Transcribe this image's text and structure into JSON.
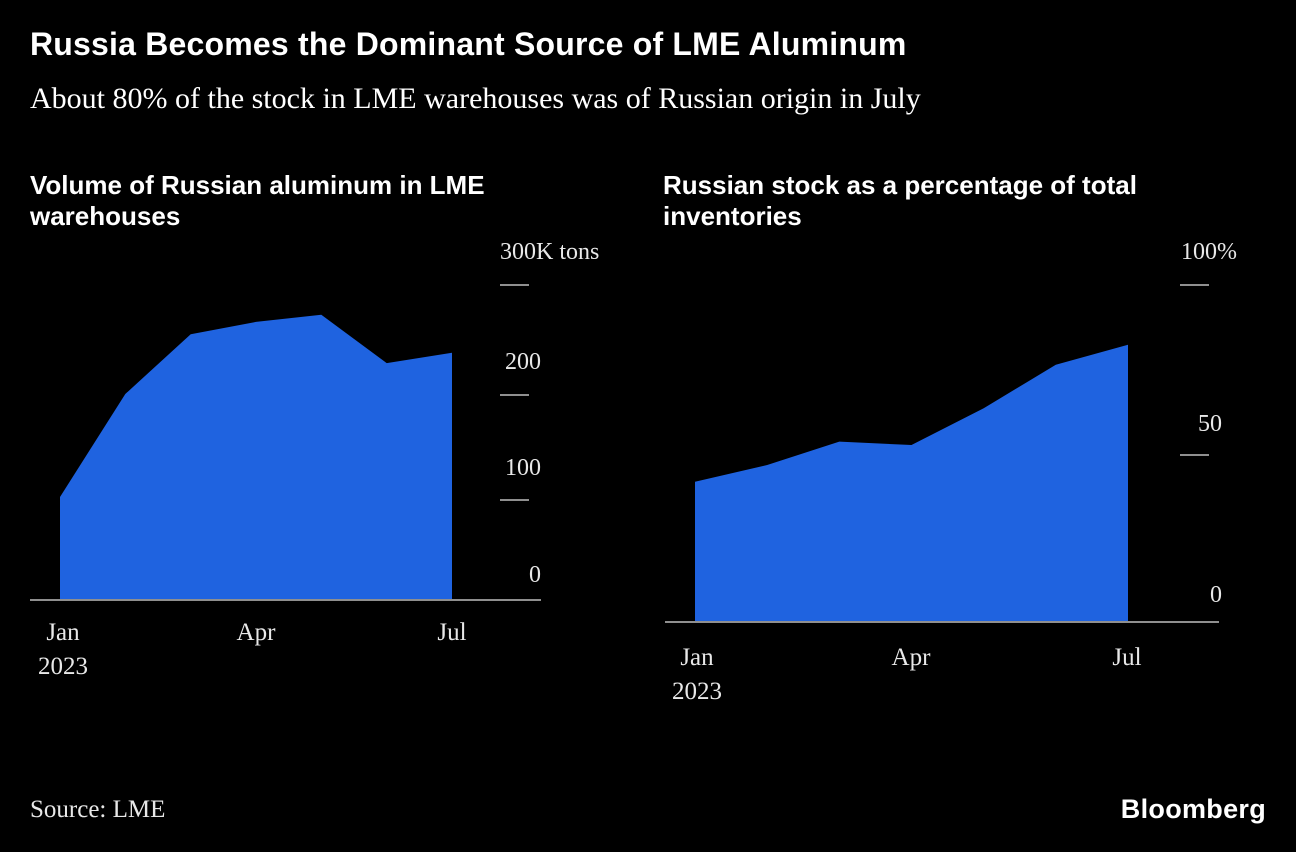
{
  "colors": {
    "background": "#000000",
    "area_blue": "#1f63e0",
    "axis_gray": "#8f8f8f",
    "label_gray": "#e8e8e8",
    "text_white": "#ffffff"
  },
  "header": {
    "title": "Russia Becomes the Dominant Source of LME Aluminum",
    "subtitle": "About 80% of the stock in LME warehouses was of Russian origin in July"
  },
  "footer": {
    "source": "Source: LME",
    "brand": "Bloomberg"
  },
  "chart_data": [
    {
      "type": "area",
      "title": "Volume of Russian aluminum in LME warehouses",
      "title_lines": [
        "Volume of Russian aluminum in LME",
        "warehouses"
      ],
      "x": [
        "Jan 2023",
        "Feb",
        "Mar",
        "Apr",
        "May",
        "Jun",
        "Jul"
      ],
      "values": [
        100,
        200,
        258,
        270,
        277,
        230,
        240
      ],
      "unit": "K tons",
      "ylabel": "",
      "xlabel": "",
      "ylim": [
        0,
        300
      ],
      "grid": false,
      "legend_position": "none",
      "yticks": [
        {
          "value": 300,
          "label": "300K tons"
        },
        {
          "value": 200,
          "label": "200"
        },
        {
          "value": 100,
          "label": "100"
        },
        {
          "value": 0,
          "label": "0"
        }
      ],
      "xticks": [
        {
          "label": "Jan",
          "sub": "2023"
        },
        {
          "label": "Apr"
        },
        {
          "label": "Jul"
        }
      ]
    },
    {
      "type": "area",
      "title": "Russian stock as a percentage of total inventories",
      "title_lines": [
        "Russian stock as a percentage of total",
        "inventories"
      ],
      "x": [
        "Jan 2023",
        "Feb",
        "Mar",
        "Apr",
        "May",
        "Jun",
        "Jul"
      ],
      "values": [
        42,
        47,
        54,
        53,
        64,
        77,
        83
      ],
      "unit": "%",
      "ylabel": "",
      "xlabel": "",
      "ylim": [
        0,
        100
      ],
      "grid": false,
      "legend_position": "none",
      "yticks": [
        {
          "value": 100,
          "label": "100%"
        },
        {
          "value": 50,
          "label": "50"
        },
        {
          "value": 0,
          "label": "0"
        }
      ],
      "xticks": [
        {
          "label": "Jan",
          "sub": "2023"
        },
        {
          "label": "Apr"
        },
        {
          "label": "Jul"
        }
      ]
    }
  ]
}
